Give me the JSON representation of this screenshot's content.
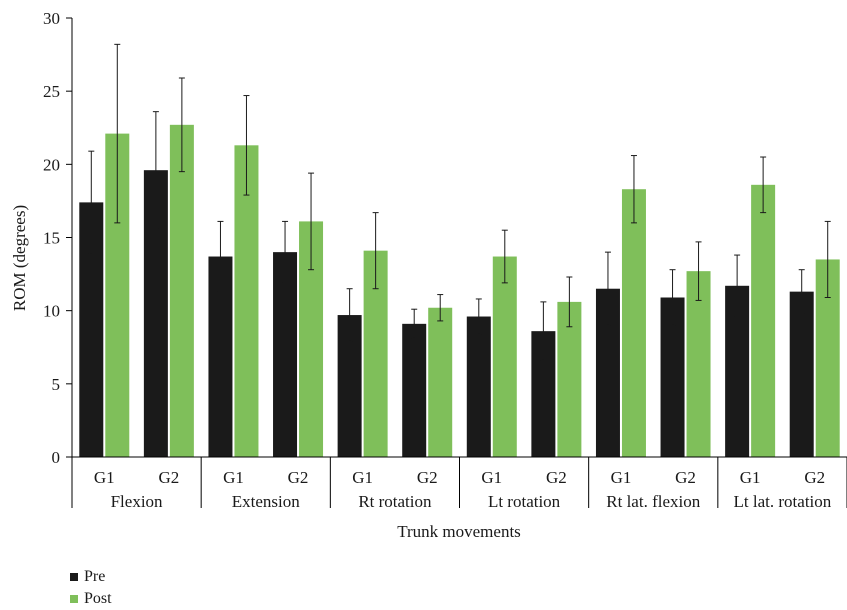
{
  "chart_data": {
    "type": "bar",
    "ylabel": "ROM (degrees)",
    "xlabel": "Trunk movements",
    "ylim": [
      0,
      30
    ],
    "yticks": [
      0,
      5,
      10,
      15,
      20,
      25,
      30
    ],
    "groups": [
      "Flexion",
      "Extension",
      "Rt rotation",
      "Lt rotation",
      "Rt lat. flexion",
      "Lt lat. rotation"
    ],
    "subgroups": [
      "G1",
      "G2"
    ],
    "categories": [
      "G1",
      "G2",
      "G1",
      "G2",
      "G1",
      "G2",
      "G1",
      "G2",
      "G1",
      "G2",
      "G1",
      "G2"
    ],
    "series": [
      {
        "name": "Pre",
        "color": "#1a1a1a",
        "values": [
          17.4,
          19.6,
          13.7,
          14.0,
          9.7,
          9.1,
          9.6,
          8.6,
          11.5,
          10.9,
          11.7,
          11.3
        ],
        "error": [
          3.5,
          4.0,
          2.4,
          2.1,
          1.8,
          1.0,
          1.2,
          2.0,
          2.5,
          1.9,
          2.1,
          1.5
        ]
      },
      {
        "name": "Post",
        "color": "#7fbf5a",
        "values": [
          22.1,
          22.7,
          21.3,
          16.1,
          14.1,
          10.2,
          13.7,
          10.6,
          18.3,
          12.7,
          18.6,
          13.5
        ],
        "error": [
          6.1,
          3.2,
          3.4,
          3.3,
          2.6,
          0.9,
          1.8,
          1.7,
          2.3,
          2.0,
          1.9,
          2.6
        ]
      }
    ],
    "legend_position": "bottom-left",
    "grid": false
  }
}
